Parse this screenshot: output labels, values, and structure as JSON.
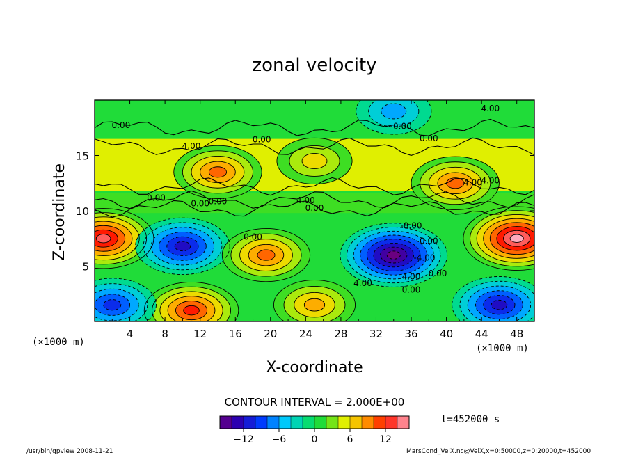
{
  "chart_data": {
    "type": "heatmap",
    "title": "zonal velocity",
    "xlabel": "X-coordinate",
    "ylabel": "Z-coordinate",
    "x_unit_left": "(×1000 m)",
    "x_unit_right": "(×1000 m)",
    "xlim": [
      0,
      50
    ],
    "ylim": [
      0,
      20
    ],
    "x_ticks": [
      "4",
      "8",
      "12",
      "16",
      "20",
      "24",
      "28",
      "32",
      "36",
      "40",
      "44",
      "48"
    ],
    "y_ticks": [
      "5",
      "10",
      "15"
    ],
    "contour_interval_text": "CONTOUR INTERVAL = 2.000E+00",
    "contour_labels": [
      "0.00",
      "0.00",
      "0.00",
      "4.00",
      "4.00",
      "0.00",
      "0.00",
      "4.00",
      "0.00",
      "0.00",
      "0.00",
      "4.00",
      "0.00",
      "-8.00",
      "0.00",
      "4.00",
      "4.00",
      "0.00",
      "4.00",
      "-4.00",
      "0.00"
    ],
    "colorbar": {
      "min": -16,
      "max": 16,
      "step": 2,
      "tick_labels": [
        "−12",
        "−6",
        "0",
        "6",
        "12"
      ],
      "tick_values": [
        -12,
        -6,
        0,
        6,
        12
      ]
    },
    "time_label": "t=452000 s",
    "features": [
      {
        "name": "upper jet",
        "x": 25,
        "z": 14.5,
        "u": 6
      },
      {
        "name": "upper jet core",
        "x": 14,
        "z": 13.5,
        "u": 10
      },
      {
        "name": "upper jet core",
        "x": 41,
        "z": 12.5,
        "u": 10
      },
      {
        "name": "lower-left jet",
        "x": 1,
        "z": 7.5,
        "u": 14
      },
      {
        "name": "lower-right jet",
        "x": 48,
        "z": 7.5,
        "u": 16
      },
      {
        "name": "negative cell",
        "x": 10,
        "z": 6.8,
        "u": -12
      },
      {
        "name": "negative cell",
        "x": 34,
        "z": 6,
        "u": -16
      },
      {
        "name": "positive cell",
        "x": 19.5,
        "z": 6,
        "u": 10
      },
      {
        "name": "surface positive",
        "x": 11,
        "z": 1,
        "u": 12
      },
      {
        "name": "surface positive",
        "x": 25,
        "z": 1.5,
        "u": 8
      },
      {
        "name": "surface negative",
        "x": 2,
        "z": 1.5,
        "u": -10
      },
      {
        "name": "surface negative",
        "x": 46,
        "z": 1.5,
        "u": -12
      },
      {
        "name": "top negative",
        "x": 34,
        "z": 19,
        "u": -6
      }
    ]
  },
  "footer": {
    "left": "/usr/bin/gpview 2008-11-21",
    "right": "MarsCond_VelX.nc@VelX,x=0:50000,z=0:20000,t=452000"
  }
}
